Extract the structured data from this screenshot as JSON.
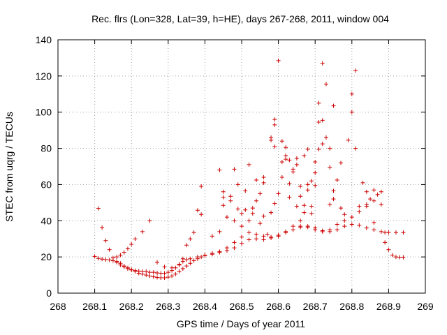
{
  "chart_data": {
    "type": "scatter",
    "title": "Rec. flrs (Lon=328, Lat=39, h=HE), days 267-268, 2011, window 004",
    "xlabel": "GPS time / Days of year 2011",
    "ylabel": "STEC from uqrg / TECUs",
    "xlim": [
      268,
      269
    ],
    "ylim": [
      0,
      140
    ],
    "x_ticks": [
      "268",
      "268.1",
      "268.2",
      "268.3",
      "268.4",
      "268.5",
      "268.6",
      "268.7",
      "268.8",
      "268.9",
      "269"
    ],
    "y_ticks": [
      "0",
      "20",
      "40",
      "60",
      "80",
      "100",
      "120",
      "140"
    ],
    "grid": true,
    "legend": "none",
    "marker": "+",
    "marker_color": "#cc0000",
    "series": [
      {
        "points": [
          [
            268.1,
            20.3
          ],
          [
            268.11,
            19.2
          ],
          [
            268.12,
            18.8
          ],
          [
            268.13,
            18.5
          ],
          [
            268.14,
            18.3
          ],
          [
            268.15,
            18.0
          ],
          [
            268.16,
            17.5
          ],
          [
            268.17,
            16.5
          ],
          [
            268.18,
            15.0
          ],
          [
            268.19,
            14.0
          ],
          [
            268.2,
            13.0
          ],
          [
            268.21,
            12.0
          ],
          [
            268.22,
            11.0
          ],
          [
            268.23,
            10.5
          ],
          [
            268.24,
            10.0
          ],
          [
            268.25,
            9.5
          ],
          [
            268.26,
            9.0
          ],
          [
            268.27,
            8.7
          ],
          [
            268.28,
            8.5
          ],
          [
            268.29,
            8.5
          ],
          [
            268.3,
            8.8
          ],
          [
            268.31,
            9.5
          ],
          [
            268.32,
            10.5
          ],
          [
            268.33,
            12.0
          ],
          [
            268.34,
            13.5
          ],
          [
            268.35,
            15.0
          ],
          [
            268.36,
            16.5
          ],
          [
            268.37,
            18.0
          ],
          [
            268.38,
            19.0
          ],
          [
            268.39,
            20.0
          ],
          [
            268.4,
            20.8
          ],
          [
            268.42,
            21.5
          ],
          [
            268.44,
            22.5
          ],
          [
            268.46,
            23.5
          ],
          [
            268.48,
            25.0
          ],
          [
            268.5,
            27.5
          ],
          [
            268.52,
            29.5
          ],
          [
            268.54,
            30.0
          ],
          [
            268.56,
            29.5
          ],
          [
            268.58,
            30.5
          ],
          [
            268.6,
            32.0
          ],
          [
            268.62,
            33.5
          ],
          [
            268.64,
            35.0
          ],
          [
            268.66,
            36.5
          ],
          [
            268.68,
            37.0
          ],
          [
            268.7,
            36.0
          ],
          [
            268.72,
            34.5
          ],
          [
            268.74,
            34.0
          ],
          [
            268.76,
            35.0
          ],
          [
            268.78,
            37.0
          ],
          [
            268.8,
            38.0
          ],
          [
            268.82,
            37.5
          ],
          [
            268.84,
            36.0
          ],
          [
            268.86,
            35.0
          ],
          [
            268.88,
            34.0
          ],
          [
            268.9,
            33.5
          ],
          [
            268.92,
            33.5
          ],
          [
            268.94,
            33.5
          ]
        ]
      },
      {
        "points": [
          [
            268.11,
            46.8
          ],
          [
            268.12,
            36.2
          ],
          [
            268.13,
            29.0
          ],
          [
            268.14,
            24.0
          ],
          [
            268.15,
            19.5
          ],
          [
            268.16,
            17.0
          ],
          [
            268.17,
            15.5
          ],
          [
            268.18,
            14.5
          ],
          [
            268.19,
            13.5
          ],
          [
            268.2,
            12.8
          ],
          [
            268.21,
            12.5
          ],
          [
            268.22,
            12.2
          ],
          [
            268.23,
            12.0
          ],
          [
            268.24,
            12.0
          ],
          [
            268.25,
            11.5
          ],
          [
            268.26,
            11.5
          ],
          [
            268.27,
            11.2
          ],
          [
            268.28,
            11.0
          ],
          [
            268.29,
            11.0
          ],
          [
            268.3,
            11.5
          ],
          [
            268.31,
            12.5
          ],
          [
            268.32,
            14.0
          ],
          [
            268.33,
            16.0
          ],
          [
            268.34,
            17.5
          ],
          [
            268.35,
            18.5
          ],
          [
            268.36,
            19.0
          ],
          [
            268.38,
            20.0
          ],
          [
            268.4,
            21.0
          ],
          [
            268.42,
            22.0
          ],
          [
            268.44,
            23.0
          ],
          [
            268.46,
            25.0
          ],
          [
            268.48,
            28.0
          ],
          [
            268.5,
            31.0
          ],
          [
            268.52,
            33.5
          ],
          [
            268.54,
            32.5
          ],
          [
            268.56,
            31.5
          ],
          [
            268.58,
            31.0
          ],
          [
            268.6,
            31.5
          ],
          [
            268.62,
            34.0
          ],
          [
            268.64,
            37.0
          ],
          [
            268.66,
            37.0
          ],
          [
            268.68,
            36.5
          ],
          [
            268.7,
            35.0
          ],
          [
            268.72,
            34.0
          ],
          [
            268.74,
            35.0
          ],
          [
            268.76,
            38.0
          ],
          [
            268.78,
            40.0
          ],
          [
            268.8,
            42.0
          ],
          [
            268.82,
            45.0
          ],
          [
            268.84,
            48.0
          ],
          [
            268.86,
            51.0
          ],
          [
            268.88,
            49.0
          ],
          [
            268.89,
            28.0
          ],
          [
            268.9,
            24.0
          ],
          [
            268.91,
            21.0
          ],
          [
            268.92,
            20.0
          ],
          [
            268.93,
            19.8
          ],
          [
            268.94,
            19.8
          ]
        ]
      },
      {
        "points": [
          [
            268.16,
            20.0
          ],
          [
            268.17,
            21.0
          ],
          [
            268.18,
            22.5
          ],
          [
            268.19,
            24.5
          ],
          [
            268.2,
            27.0
          ],
          [
            268.21,
            30.0
          ],
          [
            268.23,
            34.0
          ],
          [
            268.25,
            40.0
          ],
          [
            268.27,
            17.0
          ],
          [
            268.29,
            14.5
          ],
          [
            268.31,
            14.0
          ],
          [
            268.33,
            15.5
          ],
          [
            268.34,
            19.0
          ],
          [
            268.35,
            26.5
          ],
          [
            268.36,
            30.0
          ],
          [
            268.37,
            33.5
          ],
          [
            268.38,
            45.8
          ],
          [
            268.39,
            43.5
          ],
          [
            268.39,
            59.0
          ],
          [
            268.42,
            31.5
          ],
          [
            268.44,
            34.0
          ],
          [
            268.44,
            68.0
          ],
          [
            268.45,
            48.5
          ],
          [
            268.45,
            53.0
          ],
          [
            268.45,
            56.0
          ],
          [
            268.46,
            42.0
          ],
          [
            268.47,
            51.0
          ],
          [
            268.47,
            53.5
          ],
          [
            268.48,
            40.0
          ],
          [
            268.48,
            68.5
          ],
          [
            268.49,
            46.5
          ],
          [
            268.49,
            60.0
          ],
          [
            268.5,
            37.0
          ],
          [
            268.5,
            44.0
          ],
          [
            268.51,
            46.0
          ],
          [
            268.51,
            56.5
          ],
          [
            268.52,
            40.0
          ],
          [
            268.52,
            71.0
          ],
          [
            268.53,
            44.0
          ],
          [
            268.53,
            47.0
          ],
          [
            268.54,
            51.0
          ],
          [
            268.54,
            62.5
          ],
          [
            268.55,
            38.5
          ],
          [
            268.55,
            55.0
          ],
          [
            268.56,
            42.5
          ],
          [
            268.56,
            61.0
          ],
          [
            268.56,
            64.0
          ],
          [
            268.57,
            32.5
          ],
          [
            268.58,
            44.5
          ],
          [
            268.58,
            84.5
          ],
          [
            268.58,
            86.0
          ],
          [
            268.59,
            49.5
          ],
          [
            268.59,
            81.0
          ],
          [
            268.59,
            93.0
          ],
          [
            268.59,
            96.0
          ],
          [
            268.6,
            128.5
          ],
          [
            268.6,
            55.0
          ],
          [
            268.61,
            64.0
          ],
          [
            268.61,
            72.5
          ],
          [
            268.61,
            84.0
          ],
          [
            268.62,
            74.0
          ],
          [
            268.62,
            76.0
          ],
          [
            268.62,
            80.5
          ],
          [
            268.63,
            53.0
          ],
          [
            268.63,
            60.5
          ],
          [
            268.63,
            73.5
          ],
          [
            268.64,
            67.0
          ],
          [
            268.64,
            68.5
          ],
          [
            268.65,
            48.0
          ],
          [
            268.65,
            71.0
          ],
          [
            268.65,
            74.5
          ],
          [
            268.66,
            40.0
          ],
          [
            268.66,
            53.5
          ],
          [
            268.66,
            59.0
          ],
          [
            268.67,
            44.5
          ],
          [
            268.67,
            48.5
          ],
          [
            268.67,
            76.0
          ],
          [
            268.68,
            57.0
          ],
          [
            268.68,
            60.0
          ],
          [
            268.68,
            79.5
          ],
          [
            268.69,
            44.0
          ],
          [
            268.69,
            48.0
          ],
          [
            268.69,
            62.0
          ],
          [
            268.7,
            59.5
          ],
          [
            268.7,
            66.5
          ],
          [
            268.7,
            72.5
          ],
          [
            268.71,
            79.5
          ],
          [
            268.71,
            94.5
          ],
          [
            268.71,
            105.0
          ],
          [
            268.72,
            82.5
          ],
          [
            268.72,
            95.5
          ],
          [
            268.72,
            127.0
          ],
          [
            268.73,
            86.0
          ],
          [
            268.73,
            115.5
          ],
          [
            268.74,
            49.0
          ],
          [
            268.74,
            69.5
          ],
          [
            268.74,
            80.0
          ],
          [
            268.75,
            52.0
          ],
          [
            268.75,
            56.5
          ],
          [
            268.75,
            103.5
          ],
          [
            268.76,
            62.5
          ],
          [
            268.77,
            47.0
          ],
          [
            268.77,
            72.0
          ],
          [
            268.78,
            43.5
          ],
          [
            268.79,
            84.5
          ],
          [
            268.8,
            100.0
          ],
          [
            268.8,
            110.0
          ],
          [
            268.81,
            80.0
          ],
          [
            268.81,
            123.0
          ],
          [
            268.82,
            48.0
          ],
          [
            268.83,
            61.0
          ],
          [
            268.84,
            49.0
          ],
          [
            268.84,
            56.0
          ],
          [
            268.85,
            52.0
          ],
          [
            268.86,
            57.0
          ],
          [
            268.86,
            39.0
          ],
          [
            268.87,
            54.5
          ],
          [
            268.88,
            56.0
          ],
          [
            268.89,
            33.5
          ]
        ]
      }
    ]
  }
}
